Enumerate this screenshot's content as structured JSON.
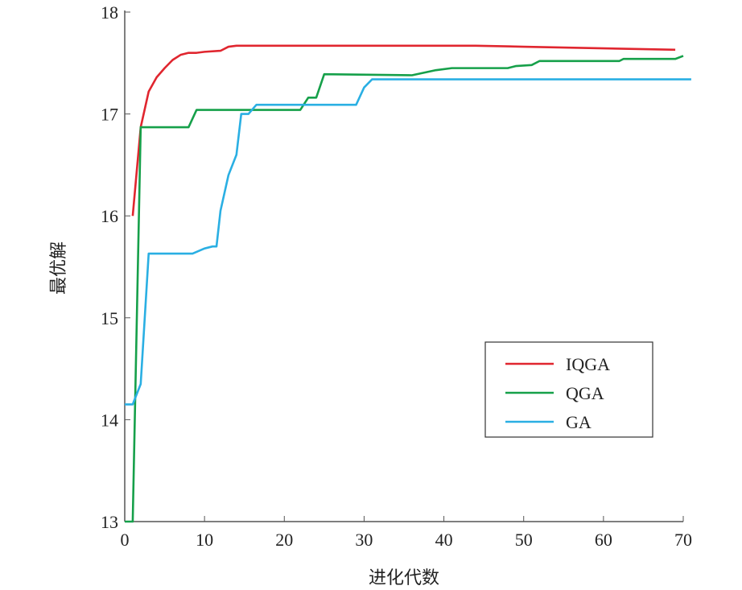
{
  "chart_data": {
    "type": "line",
    "title": "",
    "xlabel": "进化代数",
    "ylabel": "最优解",
    "xlim": [
      0,
      70
    ],
    "ylim": [
      13,
      18
    ],
    "xticks": [
      0,
      10,
      20,
      30,
      40,
      50,
      60,
      70
    ],
    "yticks": [
      13,
      14,
      15,
      16,
      17,
      18
    ],
    "grid": false,
    "legend_position": "lower-right",
    "series": [
      {
        "name": "IQGA",
        "color": "#e0262f",
        "x": [
          1,
          2,
          3,
          4,
          5,
          6,
          7,
          8,
          9,
          10,
          12,
          13,
          14,
          30,
          44,
          50,
          69
        ],
        "y": [
          16.0,
          16.87,
          17.22,
          17.36,
          17.45,
          17.53,
          17.58,
          17.6,
          17.6,
          17.61,
          17.62,
          17.66,
          17.67,
          17.67,
          17.67,
          17.66,
          17.63
        ]
      },
      {
        "name": "QGA",
        "color": "#16a04a",
        "x": [
          0,
          1,
          2,
          8,
          9,
          22,
          23,
          24,
          25,
          36,
          39,
          41,
          48,
          49,
          51,
          52,
          62,
          62.5,
          69,
          70
        ],
        "y": [
          13,
          13,
          16.87,
          16.87,
          17.04,
          17.04,
          17.16,
          17.16,
          17.39,
          17.38,
          17.43,
          17.45,
          17.45,
          17.47,
          17.48,
          17.52,
          17.52,
          17.54,
          17.54,
          17.57
        ]
      },
      {
        "name": "GA",
        "color": "#2aafe3",
        "x": [
          0,
          1,
          2,
          3,
          8.5,
          10,
          11,
          11.5,
          12,
          13,
          14,
          14.6,
          15.5,
          16.5,
          29,
          30,
          31,
          71
        ],
        "y": [
          14.15,
          14.15,
          14.35,
          15.63,
          15.63,
          15.68,
          15.7,
          15.7,
          16.05,
          16.4,
          16.6,
          17.0,
          17.0,
          17.09,
          17.09,
          17.26,
          17.34,
          17.34
        ]
      }
    ]
  }
}
